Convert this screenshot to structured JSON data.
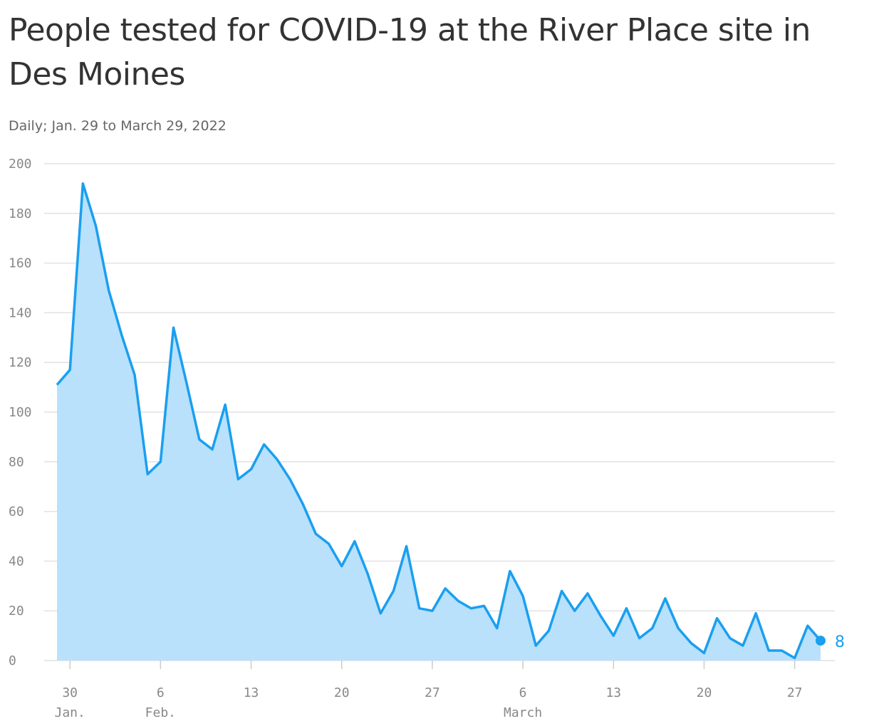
{
  "title": "People tested for COVID-19 at the River Place site in Des Moines",
  "subtitle": "Daily; Jan. 29 to March 29, 2022",
  "colors": {
    "line": "#1a9ff0",
    "area": "#b9e1fb",
    "grid": "#e2e2e2",
    "tick": "#888888",
    "title": "#333333"
  },
  "chart_data": {
    "type": "area",
    "title": "People tested for COVID-19 at the River Place site in Des Moines",
    "subtitle": "Daily; Jan. 29 to March 29, 2022",
    "xlabel": "",
    "ylabel": "",
    "ylim": [
      0,
      200
    ],
    "yticks": [
      0,
      20,
      40,
      60,
      80,
      100,
      120,
      140,
      160,
      180,
      200
    ],
    "grid": true,
    "x": [
      "2022-01-29",
      "2022-01-30",
      "2022-01-31",
      "2022-02-01",
      "2022-02-02",
      "2022-02-03",
      "2022-02-04",
      "2022-02-05",
      "2022-02-06",
      "2022-02-07",
      "2022-02-08",
      "2022-02-09",
      "2022-02-10",
      "2022-02-11",
      "2022-02-12",
      "2022-02-13",
      "2022-02-14",
      "2022-02-15",
      "2022-02-16",
      "2022-02-17",
      "2022-02-18",
      "2022-02-19",
      "2022-02-20",
      "2022-02-21",
      "2022-02-22",
      "2022-02-23",
      "2022-02-24",
      "2022-02-25",
      "2022-02-26",
      "2022-02-27",
      "2022-02-28",
      "2022-03-01",
      "2022-03-02",
      "2022-03-03",
      "2022-03-04",
      "2022-03-05",
      "2022-03-06",
      "2022-03-07",
      "2022-03-08",
      "2022-03-09",
      "2022-03-10",
      "2022-03-11",
      "2022-03-12",
      "2022-03-13",
      "2022-03-14",
      "2022-03-15",
      "2022-03-16",
      "2022-03-17",
      "2022-03-18",
      "2022-03-19",
      "2022-03-20",
      "2022-03-21",
      "2022-03-22",
      "2022-03-23",
      "2022-03-24",
      "2022-03-25",
      "2022-03-26",
      "2022-03-27",
      "2022-03-28",
      "2022-03-29"
    ],
    "values": [
      111,
      117,
      192,
      175,
      149,
      131,
      115,
      75,
      80,
      134,
      112,
      89,
      85,
      103,
      73,
      77,
      87,
      81,
      73,
      63,
      51,
      47,
      38,
      48,
      35,
      19,
      28,
      46,
      21,
      20,
      29,
      24,
      21,
      22,
      13,
      36,
      26,
      6,
      12,
      28,
      20,
      27,
      18,
      10,
      21,
      9,
      13,
      25,
      13,
      7,
      3,
      17,
      9,
      6,
      19,
      4,
      4,
      1,
      14,
      8
    ],
    "xticks": [
      {
        "date": "2022-01-30",
        "label": "30",
        "sublabel": "Jan."
      },
      {
        "date": "2022-02-06",
        "label": "6",
        "sublabel": "Feb."
      },
      {
        "date": "2022-02-13",
        "label": "13",
        "sublabel": ""
      },
      {
        "date": "2022-02-20",
        "label": "20",
        "sublabel": ""
      },
      {
        "date": "2022-02-27",
        "label": "27",
        "sublabel": ""
      },
      {
        "date": "2022-03-06",
        "label": "6",
        "sublabel": "March"
      },
      {
        "date": "2022-03-13",
        "label": "13",
        "sublabel": ""
      },
      {
        "date": "2022-03-20",
        "label": "20",
        "sublabel": ""
      },
      {
        "date": "2022-03-27",
        "label": "27",
        "sublabel": ""
      }
    ],
    "end_label": "8"
  }
}
